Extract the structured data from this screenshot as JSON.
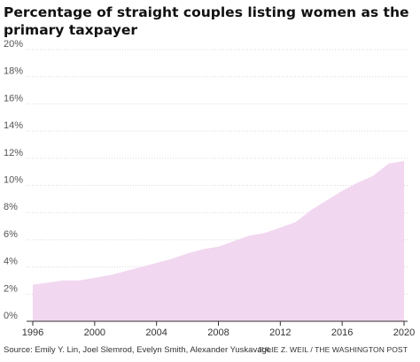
{
  "chart_data": {
    "type": "area",
    "title": "Percentage of straight couples listing women as the primary taxpayer",
    "xlabel": "",
    "ylabel": "",
    "x": [
      1996,
      1997,
      1998,
      1999,
      2000,
      2001,
      2002,
      2003,
      2004,
      2005,
      2006,
      2007,
      2008,
      2009,
      2010,
      2011,
      2012,
      2013,
      2014,
      2015,
      2016,
      2017,
      2018,
      2019,
      2020
    ],
    "values": [
      2.7,
      2.85,
      3.0,
      3.0,
      3.2,
      3.4,
      3.7,
      4.0,
      4.3,
      4.6,
      5.0,
      5.3,
      5.5,
      5.9,
      6.3,
      6.5,
      6.9,
      7.3,
      8.2,
      8.9,
      9.6,
      10.2,
      10.7,
      11.6,
      11.8
    ],
    "xticks": [
      "1996",
      "2000",
      "2004",
      "2008",
      "2012",
      "2016",
      "2020"
    ],
    "yticks": [
      "0%",
      "2%",
      "4%",
      "6%",
      "8%",
      "10%",
      "12%",
      "14%",
      "16%",
      "18%",
      "20%"
    ],
    "xlim": [
      1996,
      2020
    ],
    "ylim": [
      0,
      20
    ],
    "grid": true,
    "fill_color": "#f2d7f0"
  },
  "footer": {
    "source": "Source: Emily Y. Lin, Joel Slemrod, Evelyn Smith, Alexander Yuskavage",
    "credit": "JULIE Z. WEIL / THE WASHINGTON POST"
  }
}
